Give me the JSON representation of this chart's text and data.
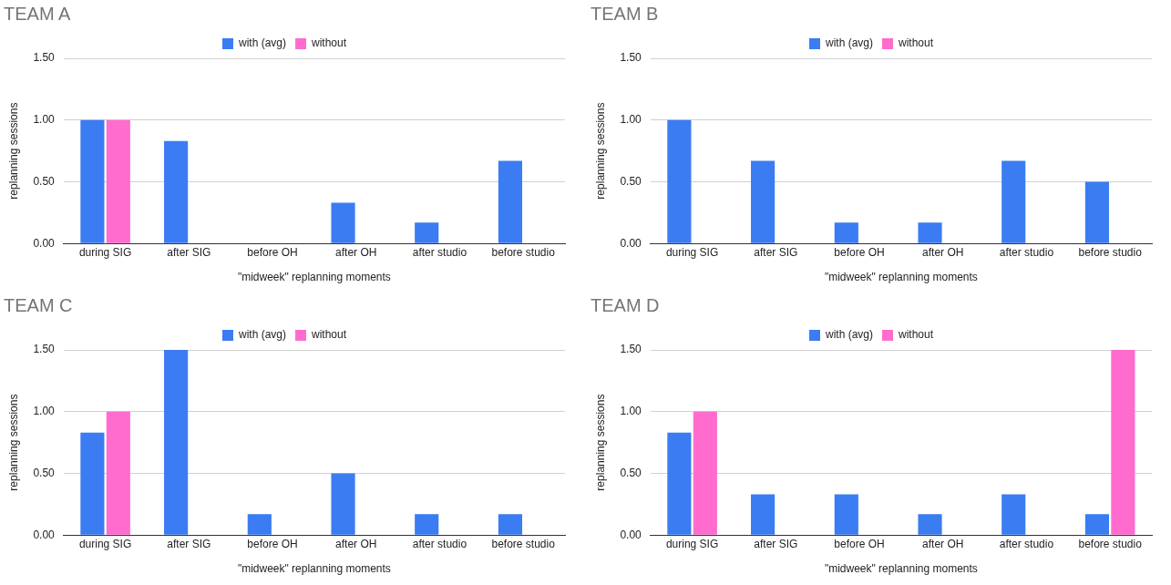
{
  "chart_data": [
    {
      "type": "bar",
      "title": "TEAM A",
      "xlabel": "\"midweek\" replanning moments",
      "ylabel": "replanning sessions",
      "categories": [
        "during SIG",
        "after SIG",
        "before OH",
        "after OH",
        "after studio",
        "before studio"
      ],
      "series": [
        {
          "name": "with (avg)",
          "color": "#3b7cf2",
          "values": [
            1.0,
            0.83,
            0,
            0.33,
            0.17,
            0.67
          ]
        },
        {
          "name": "without",
          "color": "#ff6ccd",
          "values": [
            1.0,
            0,
            0,
            0,
            0,
            0
          ]
        }
      ],
      "ylim": [
        0,
        1.5
      ],
      "yticks": [
        {
          "value": 0,
          "label": "0.00"
        },
        {
          "value": 0.5,
          "label": "0.50"
        },
        {
          "value": 1,
          "label": "1.00"
        },
        {
          "value": 1.5,
          "label": "1.50"
        }
      ],
      "grid": "y",
      "legend": "top"
    },
    {
      "type": "bar",
      "title": "TEAM B",
      "xlabel": "\"midweek\" replanning moments",
      "ylabel": "replanning sessions",
      "categories": [
        "during SIG",
        "after SIG",
        "before OH",
        "after OH",
        "after studio",
        "before studio"
      ],
      "series": [
        {
          "name": "with (avg)",
          "color": "#3b7cf2",
          "values": [
            1.0,
            0.67,
            0.17,
            0.17,
            0.67,
            0.5
          ]
        },
        {
          "name": "without",
          "color": "#ff6ccd",
          "values": [
            0,
            0,
            0,
            0,
            0,
            0
          ]
        }
      ],
      "ylim": [
        0,
        1.5
      ],
      "yticks": [
        {
          "value": 0,
          "label": "0.00"
        },
        {
          "value": 0.5,
          "label": "0.50"
        },
        {
          "value": 1,
          "label": "1.00"
        },
        {
          "value": 1.5,
          "label": "1.50"
        }
      ],
      "grid": "y",
      "legend": "top"
    },
    {
      "type": "bar",
      "title": "TEAM C",
      "xlabel": "\"midweek\" replanning moments",
      "ylabel": "replanning sessions",
      "categories": [
        "during SIG",
        "after SIG",
        "before OH",
        "after OH",
        "after studio",
        "before studio"
      ],
      "series": [
        {
          "name": "with (avg)",
          "color": "#3b7cf2",
          "values": [
            0.83,
            1.5,
            0.17,
            0.5,
            0.17,
            0.17
          ]
        },
        {
          "name": "without",
          "color": "#ff6ccd",
          "values": [
            1.0,
            0,
            0,
            0,
            0,
            0
          ]
        }
      ],
      "ylim": [
        0,
        1.5
      ],
      "yticks": [
        {
          "value": 0,
          "label": "0.00"
        },
        {
          "value": 0.5,
          "label": "0.50"
        },
        {
          "value": 1,
          "label": "1.00"
        },
        {
          "value": 1.5,
          "label": "1.50"
        }
      ],
      "grid": "y",
      "legend": "top"
    },
    {
      "type": "bar",
      "title": "TEAM D",
      "xlabel": "\"midweek\" replanning moments",
      "ylabel": "replanning sessions",
      "categories": [
        "during SIG",
        "after SIG",
        "before OH",
        "after OH",
        "after studio",
        "before studio"
      ],
      "series": [
        {
          "name": "with (avg)",
          "color": "#3b7cf2",
          "values": [
            0.83,
            0.33,
            0.33,
            0.17,
            0.33,
            0.17
          ]
        },
        {
          "name": "without",
          "color": "#ff6ccd",
          "values": [
            1.0,
            0,
            0,
            0,
            0,
            1.5
          ]
        }
      ],
      "ylim": [
        0,
        1.5
      ],
      "yticks": [
        {
          "value": 0,
          "label": "0.00"
        },
        {
          "value": 0.5,
          "label": "0.50"
        },
        {
          "value": 1,
          "label": "1.00"
        },
        {
          "value": 1.5,
          "label": "1.50"
        }
      ],
      "grid": "y",
      "legend": "top"
    }
  ]
}
